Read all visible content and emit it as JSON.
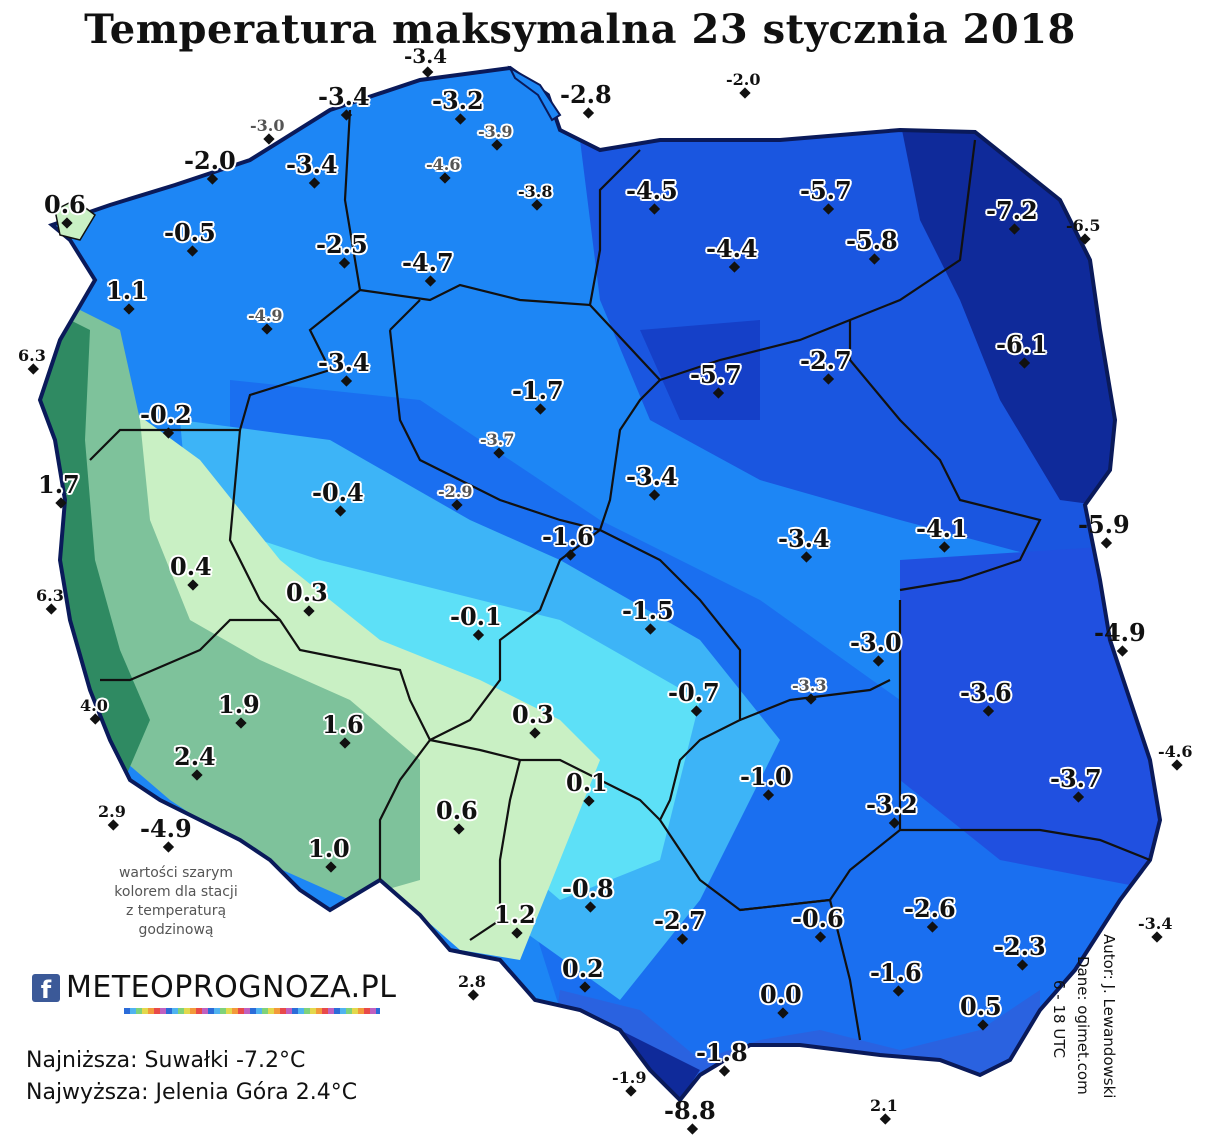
{
  "title": "Temperatura maksymalna 23 stycznia 2018",
  "note": [
    "wartości szarym",
    "kolorem dla stacji",
    "z temperaturą",
    "godzinową"
  ],
  "logo": {
    "icon": "f",
    "text": "METEOPROGNOZA.PL"
  },
  "summary": {
    "lowest": "Najniższa: Suwałki -7.2°C",
    "highest": "Najwyższa: Jelenia Góra 2.4°C"
  },
  "credits": {
    "author": "Autor: J. Lewandowski",
    "source": "Dane: ogimet.com",
    "period": "6 - 18 UTC"
  },
  "colors": {
    "very_cold": "#0f2a9a",
    "cold": "#1a56e0",
    "cool": "#1d86f5",
    "mild_blue": "#3db4f7",
    "cyan": "#5de0f7",
    "pale_green": "#c9f0c4",
    "green": "#7ec29b",
    "dark_green": "#2f8a62"
  },
  "stations": [
    {
      "value": "-3.4"
    },
    {
      "value": "-3.4"
    },
    {
      "value": "-3.2"
    },
    {
      "value": "-2.8"
    },
    {
      "value": "-2.0"
    },
    {
      "value": "-3.0"
    },
    {
      "value": "-3.9"
    },
    {
      "value": "-2.0"
    },
    {
      "value": "-3.4"
    },
    {
      "value": "-4.6"
    },
    {
      "value": "-3.8"
    },
    {
      "value": "-4.5"
    },
    {
      "value": "-5.7"
    },
    {
      "value": "0.6"
    },
    {
      "value": "-7.2"
    },
    {
      "value": "-6.5"
    },
    {
      "value": "-0.5"
    },
    {
      "value": "-2.5"
    },
    {
      "value": "-4.7"
    },
    {
      "value": "-4.4"
    },
    {
      "value": "-5.8"
    },
    {
      "value": "1.1"
    },
    {
      "value": "-4.9"
    },
    {
      "value": "6.3"
    },
    {
      "value": "-3.4"
    },
    {
      "value": "-1.7"
    },
    {
      "value": "-5.7"
    },
    {
      "value": "-2.7"
    },
    {
      "value": "-6.1"
    },
    {
      "value": "-0.2"
    },
    {
      "value": "-3.7"
    },
    {
      "value": "1.7"
    },
    {
      "value": "-3.4"
    },
    {
      "value": "-0.4"
    },
    {
      "value": "-2.9"
    },
    {
      "value": "-1.6"
    },
    {
      "value": "-3.4"
    },
    {
      "value": "-4.1"
    },
    {
      "value": "-5.9"
    },
    {
      "value": "0.4"
    },
    {
      "value": "0.3"
    },
    {
      "value": "6.3"
    },
    {
      "value": "-0.1"
    },
    {
      "value": "-1.5"
    },
    {
      "value": "-3.0"
    },
    {
      "value": "-4.9"
    },
    {
      "value": "1.9"
    },
    {
      "value": "-3.3"
    },
    {
      "value": "-3.6"
    },
    {
      "value": "4.0"
    },
    {
      "value": "1.6"
    },
    {
      "value": "0.3"
    },
    {
      "value": "-0.7"
    },
    {
      "value": "2.4"
    },
    {
      "value": "-1.0"
    },
    {
      "value": "0.1"
    },
    {
      "value": "-4.6"
    },
    {
      "value": "-3.7"
    },
    {
      "value": "-3.2"
    },
    {
      "value": "2.9"
    },
    {
      "value": "-4.9"
    },
    {
      "value": "0.6"
    },
    {
      "value": "1.0"
    },
    {
      "value": "-0.8"
    },
    {
      "value": "-2.7"
    },
    {
      "value": "-0.6"
    },
    {
      "value": "-2.6"
    },
    {
      "value": "1.2"
    },
    {
      "value": "-3.4"
    },
    {
      "value": "-2.3"
    },
    {
      "value": "0.2"
    },
    {
      "value": "-1.6"
    },
    {
      "value": "2.8"
    },
    {
      "value": "0.0"
    },
    {
      "value": "0.5"
    },
    {
      "value": "-1.8"
    },
    {
      "value": "-1.9"
    },
    {
      "value": "-8.8"
    },
    {
      "value": "2.1"
    }
  ]
}
